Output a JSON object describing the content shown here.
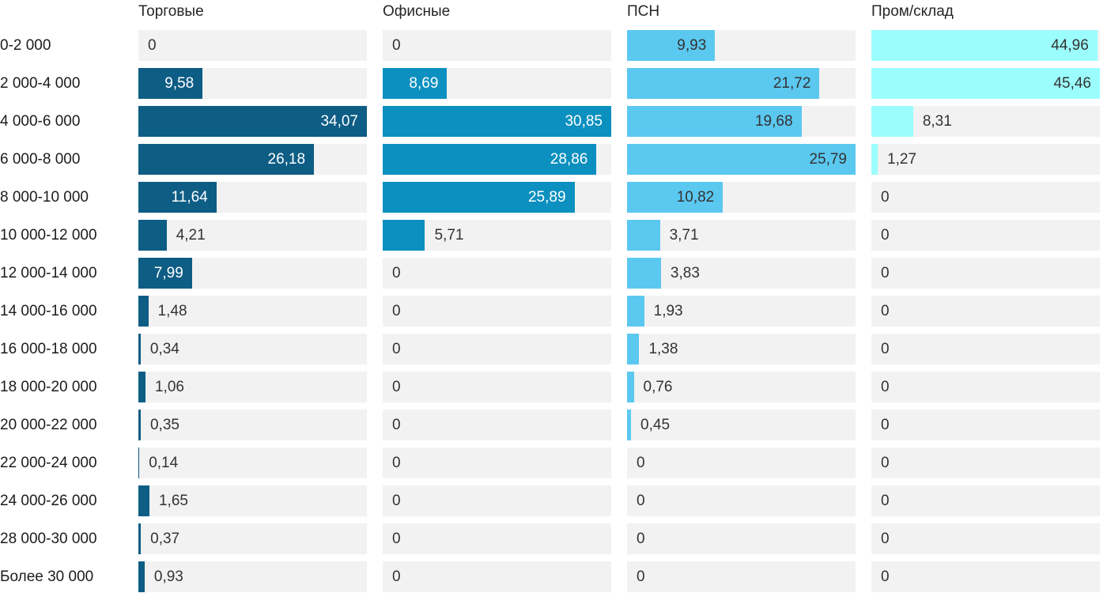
{
  "chart_data": {
    "type": "bar",
    "orientation": "horizontal",
    "title": "",
    "xlabel": "",
    "ylabel": "",
    "normalization": "each series scaled to its own max value",
    "grid": false,
    "legend_position": "column headers on top",
    "track_color": "#f2f2f2",
    "outside_label_color": "#333333",
    "row_label_color": "#1c1c1c",
    "header_color": "#262626",
    "categories": [
      "0-2 000",
      "2 000-4 000",
      "4 000-6 000",
      "6 000-8 000",
      "8 000-10 000",
      "10 000-12 000",
      "12 000-14 000",
      "14 000-16 000",
      "16 000-18 000",
      "18 000-20 000",
      "20 000-22 000",
      "22 000-24 000",
      "24 000-26 000",
      "28 000-30 000",
      "Более 30 000"
    ],
    "series": [
      {
        "name": "Торговые",
        "color": "#0e5d85",
        "inside_label_color": "#ffffff",
        "values": [
          0,
          9.58,
          34.07,
          26.18,
          11.64,
          4.21,
          7.99,
          1.48,
          0.34,
          1.06,
          0.35,
          0.14,
          1.65,
          0.37,
          0.93
        ]
      },
      {
        "name": "Офисные",
        "color": "#0b90bf",
        "inside_label_color": "#ffffff",
        "values": [
          0,
          8.69,
          30.85,
          28.86,
          25.89,
          5.71,
          0,
          0,
          0,
          0,
          0,
          0,
          0,
          0,
          0
        ]
      },
      {
        "name": "ПСН",
        "color": "#5bc8f0",
        "inside_label_color": "#333333",
        "values": [
          9.93,
          21.72,
          19.68,
          25.79,
          10.82,
          3.71,
          3.83,
          1.93,
          1.38,
          0.76,
          0.45,
          0,
          0,
          0,
          0
        ]
      },
      {
        "name": "Пром/склад",
        "color": "#9cfdfe",
        "inside_label_color": "#333333",
        "values": [
          44.96,
          45.46,
          8.31,
          1.27,
          0,
          0,
          0,
          0,
          0,
          0,
          0,
          0,
          0,
          0,
          0
        ]
      }
    ],
    "value_decimal_separator": ",",
    "zero_display": "0"
  }
}
